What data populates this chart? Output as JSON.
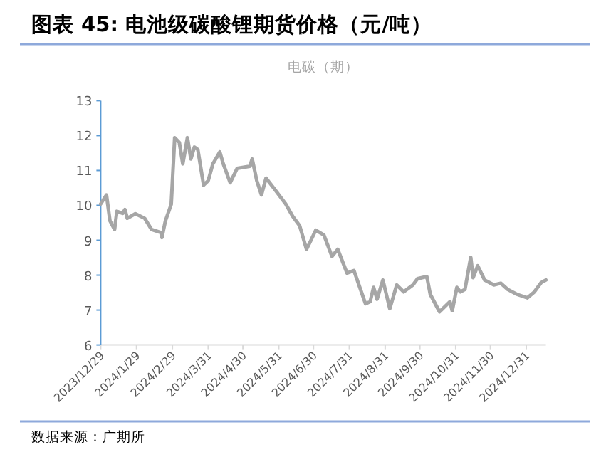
{
  "chart_data": {
    "type": "line",
    "title": "图表 45:  电池级碳酸锂期货价格（元/吨）",
    "annotations": [
      "数据来源：广期所"
    ],
    "legend": "top",
    "grid": false,
    "marker": "none",
    "line_style": "solid",
    "ylim": [
      6,
      13
    ],
    "yticks": [
      6,
      7,
      8,
      9,
      10,
      11,
      12,
      13
    ],
    "xlim": [
      "2023-12-29",
      "2025-01-17"
    ],
    "xticks": [
      {
        "value": "2023-12-29",
        "label": "2023/12/29"
      },
      {
        "value": "2024-01-29",
        "label": "2024/1/29"
      },
      {
        "value": "2024-02-29",
        "label": "2024/2/29"
      },
      {
        "value": "2024-03-31",
        "label": "2024/3/31"
      },
      {
        "value": "2024-04-30",
        "label": "2024/4/30"
      },
      {
        "value": "2024-05-31",
        "label": "2024/5/31"
      },
      {
        "value": "2024-06-30",
        "label": "2024/6/30"
      },
      {
        "value": "2024-07-31",
        "label": "2024/7/31"
      },
      {
        "value": "2024-08-31",
        "label": "2024/8/31"
      },
      {
        "value": "2024-09-30",
        "label": "2024/9/30"
      },
      {
        "value": "2024-10-31",
        "label": "2024/10/31"
      },
      {
        "value": "2024-11-30",
        "label": "2024/11/30"
      },
      {
        "value": "2024-12-31",
        "label": "2024/12/31"
      }
    ],
    "x": [
      "2023-12-29",
      "2024-01-03",
      "2024-01-06",
      "2024-01-10",
      "2024-01-12",
      "2024-01-17",
      "2024-01-19",
      "2024-01-21",
      "2024-01-28",
      "2024-02-05",
      "2024-02-11",
      "2024-02-19",
      "2024-02-20",
      "2024-02-23",
      "2024-02-28",
      "2024-03-02",
      "2024-03-06",
      "2024-03-09",
      "2024-03-13",
      "2024-03-16",
      "2024-03-19",
      "2024-03-22",
      "2024-03-27",
      "2024-03-31",
      "2024-04-04",
      "2024-04-10",
      "2024-04-13",
      "2024-04-19",
      "2024-04-25",
      "2024-05-06",
      "2024-05-08",
      "2024-05-12",
      "2024-05-16",
      "2024-05-20",
      "2024-05-28",
      "2024-06-06",
      "2024-06-12",
      "2024-06-18",
      "2024-06-24",
      "2024-06-28",
      "2024-07-02",
      "2024-07-09",
      "2024-07-16",
      "2024-07-21",
      "2024-07-29",
      "2024-08-04",
      "2024-08-14",
      "2024-08-18",
      "2024-08-21",
      "2024-08-24",
      "2024-08-29",
      "2024-09-04",
      "2024-09-10",
      "2024-09-16",
      "2024-09-24",
      "2024-09-28",
      "2024-10-06",
      "2024-10-09",
      "2024-10-17",
      "2024-10-26",
      "2024-10-28",
      "2024-11-01",
      "2024-11-04",
      "2024-11-08",
      "2024-11-13",
      "2024-11-15",
      "2024-11-19",
      "2024-11-25",
      "2024-12-03",
      "2024-12-09",
      "2024-12-15",
      "2024-12-23",
      "2025-01-01",
      "2025-01-07",
      "2025-01-13",
      "2025-01-17"
    ],
    "series": [
      {
        "name": "电碳（期）",
        "color": "#a6a6a6",
        "values": [
          10.04,
          10.3,
          9.56,
          9.31,
          9.83,
          9.77,
          9.88,
          9.63,
          9.76,
          9.63,
          9.31,
          9.22,
          9.08,
          9.56,
          10.03,
          11.94,
          11.8,
          11.19,
          11.94,
          11.33,
          11.67,
          11.6,
          10.58,
          10.71,
          11.19,
          11.53,
          11.19,
          10.65,
          11.06,
          11.12,
          11.33,
          10.71,
          10.3,
          10.78,
          10.44,
          10.04,
          9.69,
          9.42,
          8.74,
          9.01,
          9.29,
          9.15,
          8.54,
          8.74,
          8.06,
          8.13,
          7.18,
          7.24,
          7.65,
          7.31,
          7.86,
          7.04,
          7.72,
          7.52,
          7.72,
          7.9,
          7.96,
          7.45,
          6.95,
          7.24,
          6.98,
          7.65,
          7.52,
          7.59,
          8.51,
          7.93,
          8.27,
          7.86,
          7.72,
          7.77,
          7.59,
          7.45,
          7.35,
          7.52,
          7.79,
          7.86
        ]
      }
    ]
  }
}
